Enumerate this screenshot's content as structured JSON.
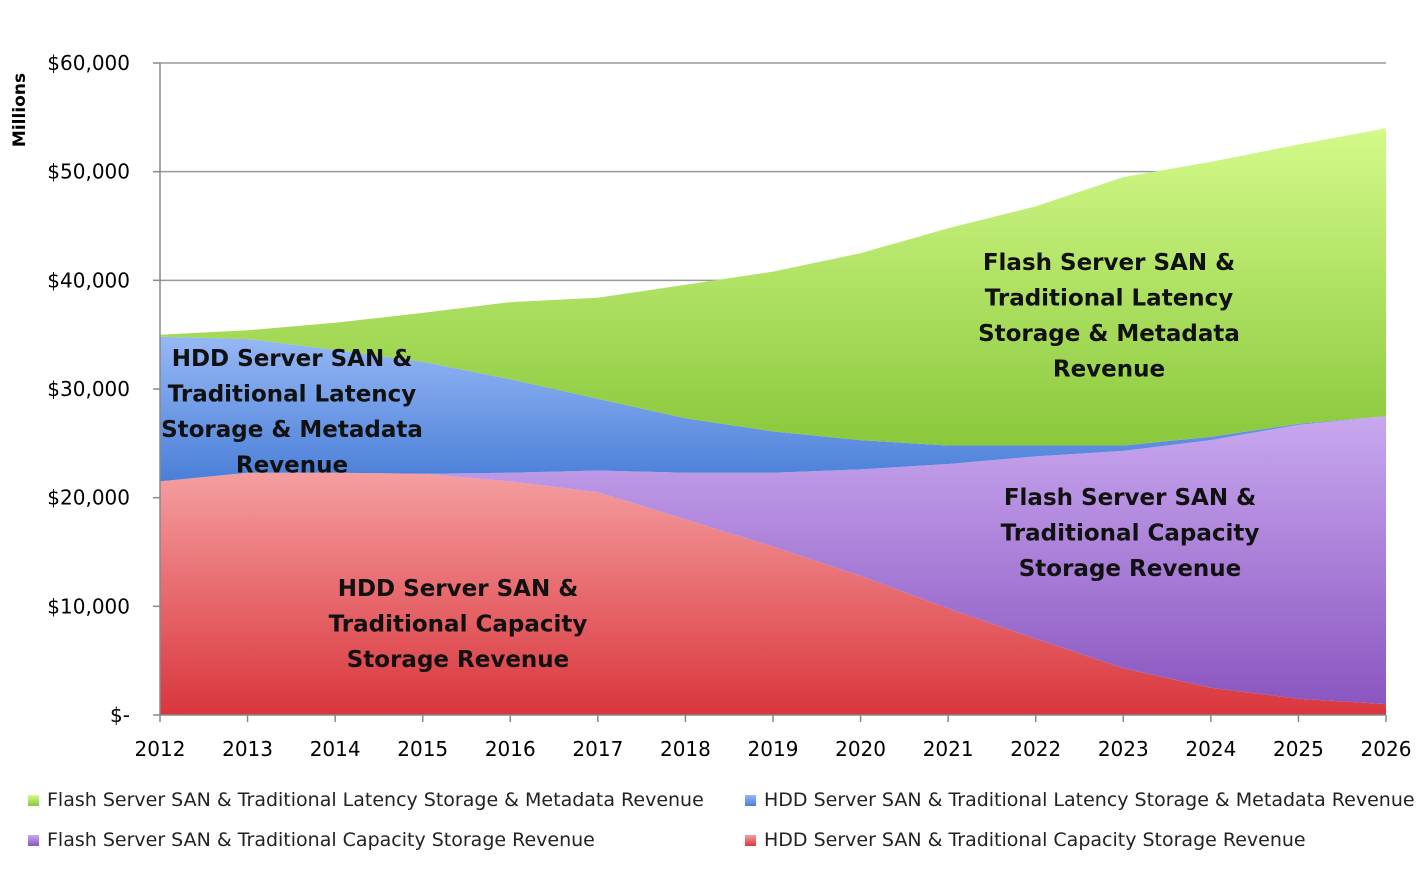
{
  "chart_data": {
    "type": "area",
    "stacked": true,
    "title": "",
    "xlabel": "",
    "ylabel": "Millions",
    "ylim": [
      0,
      60000
    ],
    "yticks": [
      0,
      10000,
      20000,
      30000,
      40000,
      50000,
      60000
    ],
    "ytick_labels": [
      "$-",
      "$10,000",
      "$20,000",
      "$30,000",
      "$40,000",
      "$50,000",
      "$60,000"
    ],
    "grid": "horizontal",
    "legend_position": "bottom",
    "x": [
      "2012",
      "2013",
      "2014",
      "2015",
      "2016",
      "2017",
      "2018",
      "2019",
      "2020",
      "2021",
      "2022",
      "2023",
      "2024",
      "2025",
      "2026"
    ],
    "series": [
      {
        "name": "HDD Server SAN & Traditional Capacity Storage Revenue",
        "color": "#d9363c",
        "color_light": "#f59ea0",
        "label": [
          "HDD Server SAN &",
          "Traditional Capacity",
          "Storage Revenue"
        ],
        "values": [
          21500,
          22300,
          22300,
          22200,
          21500,
          20500,
          18000,
          15500,
          12800,
          9800,
          7000,
          4300,
          2500,
          1500,
          1000
        ]
      },
      {
        "name": "Flash Server SAN & Traditional Capacity Storage Revenue",
        "color": "#8a56c0",
        "color_light": "#c9a8ef",
        "label": [
          "Flash Server SAN &",
          "Traditional Capacity",
          "Storage Revenue"
        ],
        "values": [
          0,
          0,
          0,
          0,
          800,
          2000,
          4300,
          6800,
          9800,
          13300,
          16800,
          20000,
          22800,
          25200,
          26500
        ]
      },
      {
        "name": "HDD Server SAN & Traditional Latency Storage & Metadata Revenue",
        "color": "#4a7fd8",
        "color_light": "#96b8f5",
        "label": [
          "HDD Server SAN &",
          "Traditional Latency",
          "Storage & Metadata",
          "Revenue"
        ],
        "values": [
          13300,
          12300,
          11300,
          10300,
          8600,
          6600,
          5000,
          3800,
          2700,
          1700,
          1000,
          500,
          300,
          100,
          0
        ]
      },
      {
        "name": "Flash Server SAN & Traditional Latency Storage & Metadata Revenue",
        "color": "#8ac83c",
        "color_light": "#d4fa8a",
        "label": [
          "Flash Server SAN &",
          "Traditional Latency",
          "Storage & Metadata",
          "Revenue"
        ],
        "values": [
          200,
          800,
          2500,
          4500,
          7100,
          9300,
          12300,
          14700,
          17200,
          20000,
          22000,
          24700,
          25300,
          25700,
          26500
        ]
      }
    ],
    "legend": [
      "Flash Server SAN & Traditional Latency Storage & Metadata Revenue",
      "HDD Server SAN & Traditional Latency Storage & Metadata Revenue",
      "Flash Server SAN & Traditional Capacity Storage Revenue",
      "HDD Server SAN & Traditional Capacity Storage Revenue"
    ]
  }
}
